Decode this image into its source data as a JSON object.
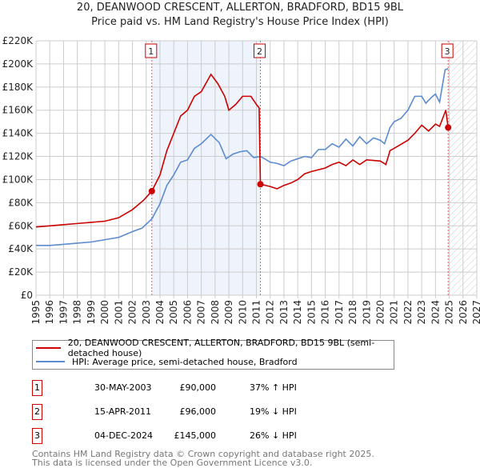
{
  "title": "20, DEANWOOD CRESCENT, ALLERTON, BRADFORD, BD15 9BL",
  "subtitle": "Price paid vs. HM Land Registry's House Price Index (HPI)",
  "colors": {
    "property": "#cc0000",
    "hpi": "#5b8bd0",
    "shade": "#eef3fc"
  },
  "chart_data": {
    "type": "line",
    "ylim": [
      0,
      220000
    ],
    "xlim": [
      1995,
      2027
    ],
    "yticks": [
      {
        "v": 0,
        "label": "£0"
      },
      {
        "v": 20000,
        "label": "£20K"
      },
      {
        "v": 40000,
        "label": "£40K"
      },
      {
        "v": 60000,
        "label": "£60K"
      },
      {
        "v": 80000,
        "label": "£80K"
      },
      {
        "v": 100000,
        "label": "£100K"
      },
      {
        "v": 120000,
        "label": "£120K"
      },
      {
        "v": 140000,
        "label": "£140K"
      },
      {
        "v": 160000,
        "label": "£160K"
      },
      {
        "v": 180000,
        "label": "£180K"
      },
      {
        "v": 200000,
        "label": "£200K"
      },
      {
        "v": 220000,
        "label": "£220K"
      }
    ],
    "xticks": [
      "1995",
      "1996",
      "1997",
      "1998",
      "1999",
      "2000",
      "2001",
      "2002",
      "2003",
      "2004",
      "2005",
      "2006",
      "2007",
      "2008",
      "2009",
      "2010",
      "2011",
      "2012",
      "2013",
      "2014",
      "2015",
      "2016",
      "2017",
      "2018",
      "2019",
      "2020",
      "2021",
      "2022",
      "2023",
      "2024",
      "2025",
      "2026",
      "2027"
    ],
    "series": [
      {
        "name": "20, DEANWOOD CRESCENT, ALLERTON, BRADFORD, BD15 9BL (semi-detached house)",
        "color": "#cc0000",
        "points": [
          [
            1995,
            59000
          ],
          [
            1996,
            60000
          ],
          [
            1997,
            61000
          ],
          [
            1998,
            62000
          ],
          [
            1999,
            63000
          ],
          [
            2000,
            64000
          ],
          [
            2001,
            67000
          ],
          [
            2002,
            74000
          ],
          [
            2002.8,
            82000
          ],
          [
            2003.41,
            90000
          ],
          [
            2004,
            104000
          ],
          [
            2004.5,
            125000
          ],
          [
            2005,
            140000
          ],
          [
            2005.5,
            155000
          ],
          [
            2006,
            160000
          ],
          [
            2006.5,
            172000
          ],
          [
            2007,
            176000
          ],
          [
            2007.7,
            191000
          ],
          [
            2008.2,
            183000
          ],
          [
            2008.7,
            172000
          ],
          [
            2009,
            160000
          ],
          [
            2009.5,
            165000
          ],
          [
            2010,
            172000
          ],
          [
            2010.6,
            172000
          ],
          [
            2011.0,
            165000
          ],
          [
            2011.2,
            162000
          ],
          [
            2011.29,
            96000
          ],
          [
            2012,
            94000
          ],
          [
            2012.5,
            92000
          ],
          [
            2013,
            95000
          ],
          [
            2013.5,
            97000
          ],
          [
            2014,
            100000
          ],
          [
            2014.5,
            105000
          ],
          [
            2015,
            107000
          ],
          [
            2016,
            110000
          ],
          [
            2016.5,
            113000
          ],
          [
            2017,
            115000
          ],
          [
            2017.5,
            112000
          ],
          [
            2018,
            117000
          ],
          [
            2018.5,
            113000
          ],
          [
            2019,
            117000
          ],
          [
            2020,
            116000
          ],
          [
            2020.4,
            113000
          ],
          [
            2020.7,
            125000
          ],
          [
            2021,
            127000
          ],
          [
            2022,
            134000
          ],
          [
            2022.5,
            140000
          ],
          [
            2023,
            147000
          ],
          [
            2023.5,
            142000
          ],
          [
            2024,
            148000
          ],
          [
            2024.3,
            146000
          ],
          [
            2024.75,
            160000
          ],
          [
            2024.92,
            145000
          ]
        ]
      },
      {
        "name": "HPI: Average price, semi-detached house, Bradford",
        "color": "#5b8bd0",
        "points": [
          [
            1995,
            43000
          ],
          [
            1996,
            43000
          ],
          [
            1997,
            44000
          ],
          [
            1998,
            45000
          ],
          [
            1999,
            46000
          ],
          [
            2000,
            48000
          ],
          [
            2001,
            50000
          ],
          [
            2002,
            55000
          ],
          [
            2002.7,
            58000
          ],
          [
            2003.41,
            66000
          ],
          [
            2004,
            79000
          ],
          [
            2004.5,
            95000
          ],
          [
            2005,
            104000
          ],
          [
            2005.5,
            115000
          ],
          [
            2006,
            117000
          ],
          [
            2006.5,
            127000
          ],
          [
            2007,
            131000
          ],
          [
            2007.7,
            139000
          ],
          [
            2008.3,
            132000
          ],
          [
            2008.8,
            118000
          ],
          [
            2009.3,
            122000
          ],
          [
            2009.8,
            124000
          ],
          [
            2010.3,
            125000
          ],
          [
            2010.8,
            119000
          ],
          [
            2011.29,
            120000
          ],
          [
            2011.6,
            118000
          ],
          [
            2012,
            115000
          ],
          [
            2012.5,
            114000
          ],
          [
            2013,
            112000
          ],
          [
            2013.5,
            116000
          ],
          [
            2014,
            118000
          ],
          [
            2014.5,
            120000
          ],
          [
            2015,
            119000
          ],
          [
            2015.5,
            126000
          ],
          [
            2016,
            126000
          ],
          [
            2016.5,
            131000
          ],
          [
            2017,
            128000
          ],
          [
            2017.5,
            135000
          ],
          [
            2018,
            129000
          ],
          [
            2018.5,
            137000
          ],
          [
            2019,
            131000
          ],
          [
            2019.5,
            136000
          ],
          [
            2020,
            134000
          ],
          [
            2020.3,
            131000
          ],
          [
            2020.7,
            145000
          ],
          [
            2021,
            150000
          ],
          [
            2021.5,
            153000
          ],
          [
            2022,
            160000
          ],
          [
            2022.5,
            172000
          ],
          [
            2023,
            172000
          ],
          [
            2023.3,
            166000
          ],
          [
            2023.7,
            171000
          ],
          [
            2024,
            174000
          ],
          [
            2024.3,
            167000
          ],
          [
            2024.7,
            195000
          ],
          [
            2024.92,
            196000
          ]
        ]
      }
    ],
    "sales": [
      {
        "label": "1",
        "x": 2003.41,
        "y": 90000
      },
      {
        "label": "2",
        "x": 2011.29,
        "y": 96000
      },
      {
        "label": "3",
        "x": 2024.92,
        "y": 145000
      }
    ],
    "forecast_from": 2025
  },
  "legend": {
    "property": "20, DEANWOOD CRESCENT, ALLERTON, BRADFORD, BD15 9BL (semi-detached house)",
    "hpi": "HPI: Average price, semi-detached house, Bradford"
  },
  "transactions": [
    {
      "num": "1",
      "date": "30-MAY-2003",
      "price": "£90,000",
      "hpi": "37% ↑ HPI"
    },
    {
      "num": "2",
      "date": "15-APR-2011",
      "price": "£96,000",
      "hpi": "19% ↓ HPI"
    },
    {
      "num": "3",
      "date": "04-DEC-2024",
      "price": "£145,000",
      "hpi": "26% ↓ HPI"
    }
  ],
  "footer": [
    "Contains HM Land Registry data © Crown copyright and database right 2025.",
    "This data is licensed under the Open Government Licence v3.0."
  ]
}
